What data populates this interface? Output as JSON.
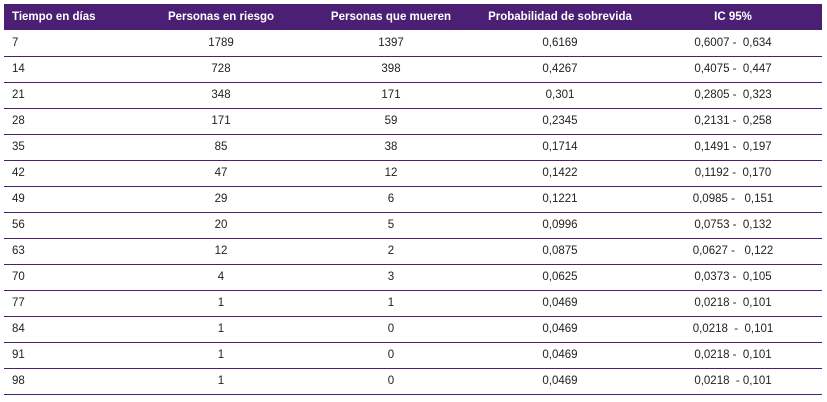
{
  "table": {
    "headers": [
      "Tiempo en días",
      "Personas en riesgo",
      "Personas que mueren",
      "Probabilidad de sobrevida",
      "IC 95%"
    ],
    "rows": [
      [
        "7",
        "1789",
        "1397",
        "0,6169",
        "0,6007 -  0,634"
      ],
      [
        "14",
        "728",
        "398",
        "0,4267",
        "0,4075 -  0,447"
      ],
      [
        "21",
        "348",
        "171",
        "0,301",
        "0,2805 -  0,323"
      ],
      [
        "28",
        "171",
        "59",
        "0,2345",
        "0,2131 -  0,258"
      ],
      [
        "35",
        "85",
        "38",
        "0,1714",
        "0,1491 -  0,197"
      ],
      [
        "42",
        "47",
        "12",
        "0,1422",
        "0,1192 -  0,170"
      ],
      [
        "49",
        "29",
        "6",
        "0,1221",
        "0,0985 -   0,151"
      ],
      [
        "56",
        "20",
        "5",
        "0,0996",
        "0,0753 -  0,132"
      ],
      [
        "63",
        "12",
        "2",
        "0,0875",
        "0,0627 -   0,122"
      ],
      [
        "70",
        "4",
        "3",
        "0,0625",
        "0,0373 -  0,105"
      ],
      [
        "77",
        "1",
        "1",
        "0,0469",
        "0,0218 -  0,101"
      ],
      [
        "84",
        "1",
        "0",
        "0,0469",
        "0,0218  -  0,101"
      ],
      [
        "91",
        "1",
        "0",
        "0,0469",
        "0,0218 -  0,101"
      ],
      [
        "98",
        "1",
        "0",
        "0,0469",
        "0,0218  - 0,101"
      ]
    ]
  },
  "colors": {
    "header_bg": "#4b1f74",
    "header_text": "#ffffff",
    "row_border": "#4b1f74"
  }
}
